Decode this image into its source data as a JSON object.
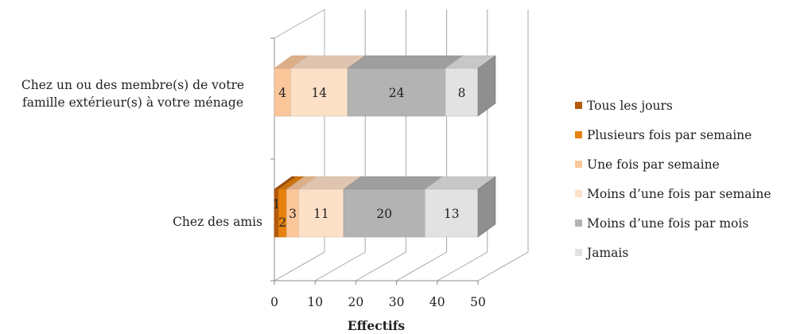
{
  "chart_data": {
    "type": "bar",
    "orientation": "horizontal",
    "stacked": true,
    "three_d": true,
    "categories": [
      "Chez un ou des membre(s) de votre famille extérieur(s) à votre ménage",
      "Chez des amis"
    ],
    "series": [
      {
        "name": "Tous les jours",
        "color": "#b55a0e",
        "values": [
          0,
          1
        ]
      },
      {
        "name": "Plusieurs fois par semaine",
        "color": "#e8820f",
        "values": [
          0,
          2
        ]
      },
      {
        "name": "Une fois par semaine",
        "color": "#fbc79a",
        "values": [
          4,
          3
        ]
      },
      {
        "name": "Moins d’une fois par semaine",
        "color": "#fde0c8",
        "values": [
          14,
          11
        ]
      },
      {
        "name": "Moins d’une fois par mois",
        "color": "#b3b3b3",
        "values": [
          24,
          20
        ]
      },
      {
        "name": "Jamais",
        "color": "#e2e2e2",
        "values": [
          8,
          13
        ]
      }
    ],
    "data_labels": [
      [
        "",
        "",
        "4",
        "14",
        "24",
        "8"
      ],
      [
        "1",
        "2",
        "3",
        "11",
        "20",
        "13"
      ]
    ],
    "xticks": [
      "0",
      "10",
      "20",
      "30",
      "40",
      "50"
    ],
    "xlim": [
      0,
      50
    ],
    "xlabel": "Effectifs",
    "ylabel": "",
    "grid": true,
    "legend_position": "right"
  }
}
